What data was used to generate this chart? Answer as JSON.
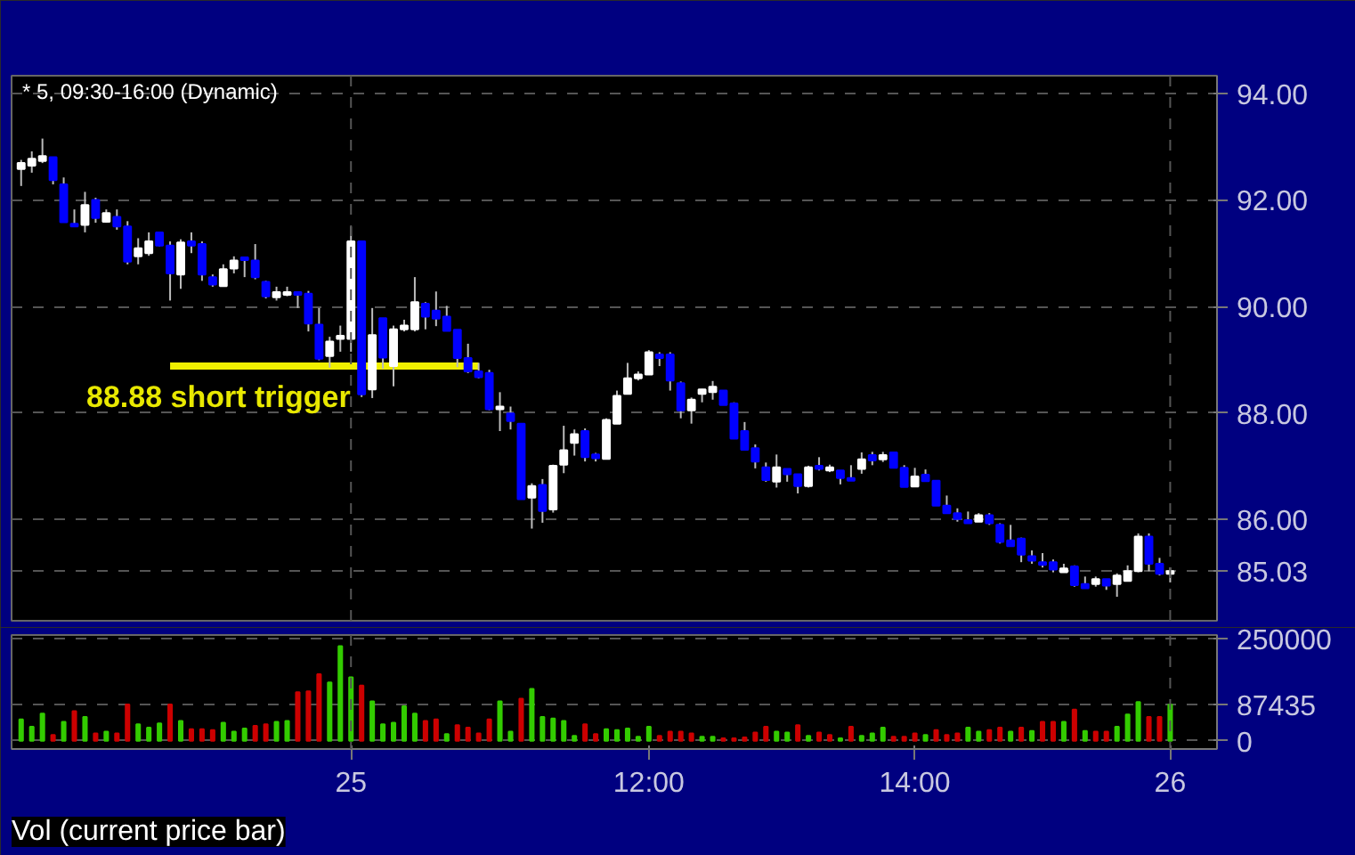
{
  "chart_data": [
    {
      "type": "candlestick",
      "title": "* 5, 09:30-16:00 (Dynamic)",
      "categories": [
        null,
        null,
        null,
        null,
        null,
        null,
        null,
        null,
        null,
        null,
        null,
        null,
        null,
        null,
        null,
        null,
        null,
        null,
        null,
        null,
        null,
        null,
        null,
        null,
        null,
        null,
        null,
        null,
        null,
        null,
        null,
        null,
        null,
        null,
        null,
        null,
        null,
        null,
        null,
        null,
        null,
        null,
        null,
        null,
        null,
        null,
        null,
        null,
        null,
        null,
        null,
        null,
        null,
        null,
        null,
        null,
        null,
        null,
        null,
        null,
        null,
        null,
        null,
        null,
        null,
        null,
        null,
        null,
        null,
        null,
        null,
        null,
        null,
        null,
        null,
        null,
        null,
        null,
        null,
        null,
        null,
        null,
        null,
        null,
        null,
        null,
        null,
        null,
        null,
        null,
        null,
        null,
        null,
        null,
        null,
        null,
        null,
        null,
        null,
        null,
        null,
        null,
        null,
        null,
        null,
        null,
        null,
        null,
        null
      ],
      "ohlc": [
        [
          92.58,
          92.75,
          92.26,
          92.69
        ],
        [
          92.64,
          92.91,
          92.51,
          92.77
        ],
        [
          92.73,
          93.15,
          92.69,
          92.82
        ],
        [
          92.8,
          92.8,
          92.29,
          92.37
        ],
        [
          92.29,
          92.42,
          91.58,
          91.58
        ],
        [
          91.55,
          91.82,
          91.5,
          91.5
        ],
        [
          91.53,
          92.15,
          91.39,
          91.9
        ],
        [
          92.0,
          92.04,
          91.57,
          91.66
        ],
        [
          91.59,
          91.82,
          91.57,
          91.75
        ],
        [
          91.68,
          91.82,
          91.44,
          91.5
        ],
        [
          91.5,
          91.6,
          90.79,
          90.84
        ],
        [
          90.94,
          91.28,
          90.79,
          91.09
        ],
        [
          91.0,
          91.39,
          90.95,
          91.22
        ],
        [
          91.39,
          91.39,
          91.13,
          91.14
        ],
        [
          91.14,
          91.22,
          90.11,
          90.62
        ],
        [
          90.6,
          91.26,
          90.33,
          91.2
        ],
        [
          91.22,
          91.39,
          91.0,
          91.14
        ],
        [
          91.17,
          91.22,
          90.48,
          90.6
        ],
        [
          90.55,
          90.6,
          90.37,
          90.41
        ],
        [
          90.38,
          90.79,
          90.37,
          90.7
        ],
        [
          90.71,
          90.94,
          90.62,
          90.86
        ],
        [
          90.92,
          90.92,
          90.55,
          90.87
        ],
        [
          90.86,
          91.17,
          90.51,
          90.55
        ],
        [
          90.46,
          90.48,
          90.15,
          90.19
        ],
        [
          90.17,
          90.37,
          90.11,
          90.27
        ],
        [
          90.22,
          90.37,
          90.19,
          90.27
        ],
        [
          90.27,
          90.27,
          89.97,
          90.22
        ],
        [
          90.24,
          90.29,
          89.53,
          89.68
        ],
        [
          89.66,
          89.97,
          88.99,
          89.02
        ],
        [
          89.07,
          89.43,
          88.85,
          89.34
        ],
        [
          89.39,
          89.64,
          89.15,
          89.45
        ],
        [
          89.39,
          91.5,
          89.15,
          91.22
        ],
        [
          91.22,
          91.22,
          88.3,
          88.35
        ],
        [
          88.44,
          89.97,
          88.28,
          89.46
        ],
        [
          89.78,
          89.78,
          88.83,
          89.04
        ],
        [
          88.88,
          89.64,
          88.5,
          89.57
        ],
        [
          89.57,
          89.75,
          89.53,
          89.64
        ],
        [
          89.57,
          90.55,
          89.53,
          90.08
        ],
        [
          90.05,
          90.08,
          89.57,
          89.81
        ],
        [
          89.92,
          90.28,
          89.63,
          89.77
        ],
        [
          89.81,
          90.01,
          89.54,
          89.54
        ],
        [
          89.56,
          89.56,
          88.86,
          89.03
        ],
        [
          89.03,
          89.3,
          88.75,
          88.78
        ],
        [
          88.78,
          88.94,
          88.65,
          88.67
        ],
        [
          88.75,
          88.81,
          88.05,
          88.07
        ],
        [
          88.07,
          88.39,
          87.66,
          88.12
        ],
        [
          87.99,
          88.12,
          87.69,
          87.85
        ],
        [
          87.8,
          87.8,
          86.38,
          86.38
        ],
        [
          86.41,
          86.68,
          85.83,
          86.63
        ],
        [
          86.65,
          86.76,
          85.94,
          86.16
        ],
        [
          86.19,
          87.03,
          86.13,
          87.01
        ],
        [
          87.03,
          87.76,
          86.87,
          87.3
        ],
        [
          87.44,
          87.69,
          87.2,
          87.6
        ],
        [
          87.66,
          87.71,
          87.09,
          87.17
        ],
        [
          87.22,
          87.25,
          87.09,
          87.15
        ],
        [
          87.14,
          87.9,
          87.14,
          87.87
        ],
        [
          87.8,
          88.42,
          87.8,
          88.32
        ],
        [
          88.36,
          88.94,
          88.36,
          88.65
        ],
        [
          88.65,
          88.78,
          88.61,
          88.72
        ],
        [
          88.72,
          89.18,
          88.72,
          89.14
        ],
        [
          89.1,
          89.14,
          88.88,
          89.03
        ],
        [
          89.1,
          89.14,
          88.42,
          88.61
        ],
        [
          88.56,
          88.59,
          87.9,
          88.05
        ],
        [
          88.05,
          88.29,
          87.8,
          88.25
        ],
        [
          88.36,
          88.45,
          88.2,
          88.44
        ],
        [
          88.39,
          88.6,
          88.25,
          88.49
        ],
        [
          88.42,
          88.42,
          88.15,
          88.15
        ],
        [
          88.18,
          88.2,
          87.52,
          87.52
        ],
        [
          87.66,
          87.83,
          87.31,
          87.31
        ],
        [
          87.34,
          87.41,
          86.96,
          87.09
        ],
        [
          86.98,
          87.07,
          86.71,
          86.74
        ],
        [
          86.71,
          87.22,
          86.6,
          86.98
        ],
        [
          86.95,
          86.95,
          86.71,
          86.85
        ],
        [
          86.85,
          86.85,
          86.49,
          86.63
        ],
        [
          86.63,
          87.01,
          86.6,
          86.98
        ],
        [
          87.01,
          87.17,
          86.92,
          86.95
        ],
        [
          86.92,
          87.03,
          86.89,
          86.98
        ],
        [
          86.92,
          86.92,
          86.66,
          86.78
        ],
        [
          86.78,
          87.02,
          86.73,
          86.73
        ],
        [
          86.95,
          87.26,
          86.86,
          87.13
        ],
        [
          87.21,
          87.27,
          87.02,
          87.11
        ],
        [
          87.13,
          87.27,
          87.08,
          87.21
        ],
        [
          87.26,
          87.26,
          86.97,
          86.97
        ],
        [
          86.97,
          87.02,
          86.61,
          86.61
        ],
        [
          86.62,
          86.97,
          86.62,
          86.81
        ],
        [
          86.84,
          86.94,
          86.72,
          86.72
        ],
        [
          86.73,
          86.73,
          86.26,
          86.26
        ],
        [
          86.26,
          86.45,
          86.12,
          86.12
        ],
        [
          86.12,
          86.21,
          85.96,
          86.01
        ],
        [
          85.99,
          86.15,
          85.93,
          85.93
        ],
        [
          85.96,
          86.12,
          85.96,
          86.08
        ],
        [
          86.08,
          86.12,
          85.9,
          85.93
        ],
        [
          85.9,
          85.93,
          85.55,
          85.58
        ],
        [
          85.61,
          85.9,
          85.5,
          85.5
        ],
        [
          85.64,
          85.66,
          85.2,
          85.34
        ],
        [
          85.31,
          85.42,
          85.17,
          85.23
        ],
        [
          85.2,
          85.37,
          85.1,
          85.15
        ],
        [
          85.2,
          85.25,
          85.01,
          85.06
        ],
        [
          85.01,
          85.17,
          85.01,
          85.08
        ],
        [
          85.12,
          85.14,
          84.74,
          84.77
        ],
        [
          84.79,
          84.93,
          84.71,
          84.71
        ],
        [
          84.79,
          84.93,
          84.74,
          84.88
        ],
        [
          84.88,
          84.88,
          84.68,
          84.76
        ],
        [
          84.79,
          84.99,
          84.55,
          84.95
        ],
        [
          84.85,
          85.14,
          84.85,
          85.03
        ],
        [
          85.03,
          85.74,
          85.01,
          85.68
        ],
        [
          85.68,
          85.74,
          85.03,
          85.17
        ],
        [
          85.17,
          85.28,
          84.95,
          84.98
        ],
        [
          84.98,
          85.1,
          84.82,
          85.03
        ]
      ],
      "colors": [
        "#ffffff",
        "#ffffff",
        "#ffffff",
        "#0000ff",
        "#0000ff",
        "#0000ff",
        "#ffffff",
        "#0000ff",
        "#ffffff",
        "#0000ff",
        "#0000ff",
        "#ffffff",
        "#ffffff",
        "#0000ff",
        "#0000ff",
        "#ffffff",
        "#0000ff",
        "#0000ff",
        "#0000ff",
        "#ffffff",
        "#ffffff",
        "#0000ff",
        "#0000ff",
        "#0000ff",
        "#ffffff",
        "#ffffff",
        "#0000ff",
        "#0000ff",
        "#0000ff",
        "#ffffff",
        "#ffffff",
        "#ffffff",
        "#0000ff",
        "#ffffff",
        "#0000ff",
        "#ffffff",
        "#ffffff",
        "#ffffff",
        "#0000ff",
        "#0000ff",
        "#0000ff",
        "#0000ff",
        "#0000ff",
        "#0000ff",
        "#0000ff",
        "#ffffff",
        "#0000ff",
        "#0000ff",
        "#ffffff",
        "#0000ff",
        "#ffffff",
        "#ffffff",
        "#ffffff",
        "#0000ff",
        "#0000ff",
        "#ffffff",
        "#ffffff",
        "#ffffff",
        "#ffffff",
        "#ffffff",
        "#0000ff",
        "#0000ff",
        "#0000ff",
        "#ffffff",
        "#ffffff",
        "#ffffff",
        "#0000ff",
        "#0000ff",
        "#0000ff",
        "#0000ff",
        "#0000ff",
        "#ffffff",
        "#0000ff",
        "#0000ff",
        "#ffffff",
        "#0000ff",
        "#ffffff",
        "#0000ff",
        "#0000ff",
        "#ffffff",
        "#0000ff",
        "#ffffff",
        "#0000ff",
        "#0000ff",
        "#ffffff",
        "#0000ff",
        "#0000ff",
        "#0000ff",
        "#0000ff",
        "#0000ff",
        "#ffffff",
        "#0000ff",
        "#0000ff",
        "#0000ff",
        "#0000ff",
        "#0000ff",
        "#0000ff",
        "#0000ff",
        "#ffffff",
        "#0000ff",
        "#0000ff",
        "#ffffff",
        "#0000ff",
        "#ffffff",
        "#ffffff",
        "#ffffff",
        "#0000ff",
        "#0000ff",
        "#ffffff"
      ],
      "series": [
        {
          "type": "line",
          "color": "#f0f000",
          "values": [
            null,
            null,
            null,
            null,
            null,
            null,
            null,
            null,
            null,
            null,
            null,
            null,
            null,
            null,
            88.88,
            88.88,
            88.88,
            88.88,
            88.88,
            88.88,
            88.88,
            88.88,
            88.88,
            88.88,
            88.88,
            88.88,
            88.88,
            88.88,
            88.88,
            88.88,
            88.88,
            88.88,
            88.88,
            88.88,
            88.88,
            88.88,
            88.88,
            88.88,
            88.88,
            88.88,
            88.88,
            88.88,
            88.88,
            88.88,
            null,
            null,
            null,
            null,
            null,
            null,
            null,
            null,
            null,
            null,
            null,
            null,
            null,
            null,
            null,
            null,
            null,
            null,
            null,
            null,
            null,
            null,
            null,
            null,
            null,
            null,
            null,
            null,
            null,
            null,
            null,
            null,
            null,
            null,
            null,
            null,
            null,
            null,
            null,
            null,
            null,
            null,
            null,
            null,
            null,
            null,
            null,
            null,
            null,
            null,
            null,
            null,
            null,
            null,
            null,
            null,
            null,
            null,
            null,
            null,
            null,
            null,
            null,
            null,
            null
          ]
        }
      ],
      "annotations": [
        "88.88 short trigger"
      ],
      "ylim": [
        84.1,
        94.33
      ],
      "yticks": [
        {
          "value": 85.03,
          "label": "85.03"
        },
        {
          "value": 86,
          "label": "86.00"
        },
        {
          "value": 88,
          "label": "88.00"
        },
        {
          "value": 90,
          "label": "90.00"
        },
        {
          "value": 92,
          "label": "92.00"
        },
        {
          "value": 94,
          "label": "94.00"
        }
      ],
      "grid": "y",
      "tick_labels": "y"
    },
    {
      "type": "bar",
      "title": "Vol (current price bar)",
      "categories": [
        null,
        null,
        null,
        null,
        null,
        null,
        null,
        null,
        null,
        null,
        null,
        null,
        null,
        null,
        null,
        null,
        null,
        null,
        null,
        null,
        null,
        null,
        null,
        null,
        null,
        null,
        null,
        null,
        null,
        null,
        null,
        "25",
        null,
        null,
        null,
        null,
        null,
        null,
        null,
        null,
        null,
        null,
        null,
        null,
        null,
        null,
        null,
        null,
        null,
        null,
        null,
        null,
        null,
        null,
        null,
        null,
        null,
        null,
        null,
        "12:00",
        null,
        null,
        null,
        null,
        null,
        null,
        null,
        null,
        null,
        null,
        null,
        null,
        null,
        null,
        null,
        null,
        null,
        null,
        null,
        null,
        null,
        null,
        null,
        null,
        "14:00",
        null,
        null,
        null,
        null,
        null,
        null,
        null,
        null,
        null,
        null,
        null,
        null,
        null,
        null,
        null,
        null,
        null,
        null,
        null,
        null,
        null,
        null,
        null,
        "26"
      ],
      "values": [
        52000,
        34000,
        66000,
        14000,
        46000,
        72000,
        58000,
        18000,
        22000,
        18000,
        88000,
        40000,
        32000,
        42000,
        88000,
        48000,
        28000,
        28000,
        26000,
        44000,
        22000,
        30000,
        36000,
        40000,
        46000,
        48000,
        118000,
        120000,
        162000,
        142000,
        230000,
        154000,
        134000,
        96000,
        40000,
        44000,
        84000,
        66000,
        48000,
        52000,
        16000,
        38000,
        32000,
        18000,
        52000,
        96000,
        22000,
        102000,
        126000,
        58000,
        54000,
        48000,
        12000,
        40000,
        16000,
        28000,
        26000,
        30000,
        10000,
        34000,
        12000,
        22000,
        22000,
        18000,
        10000,
        10000,
        6000,
        6000,
        8000,
        20000,
        34000,
        22000,
        20000,
        38000,
        12000,
        20000,
        14000,
        6000,
        34000,
        12000,
        18000,
        32000,
        10000,
        10000,
        18000,
        14000,
        26000,
        14000,
        18000,
        32000,
        22000,
        26000,
        32000,
        22000,
        32000,
        24000,
        46000,
        46000,
        46000,
        76000,
        24000,
        22000,
        22000,
        34000,
        64000,
        94000,
        58000,
        58000,
        87435
      ],
      "colors": [
        "#33cc00",
        "#33cc00",
        "#33cc00",
        "#cc0000",
        "#33cc00",
        "#cc0000",
        "#33cc00",
        "#cc0000",
        "#33cc00",
        "#cc0000",
        "#cc0000",
        "#33cc00",
        "#33cc00",
        "#33cc00",
        "#cc0000",
        "#33cc00",
        "#cc0000",
        "#cc0000",
        "#cc0000",
        "#33cc00",
        "#33cc00",
        "#33cc00",
        "#cc0000",
        "#cc0000",
        "#33cc00",
        "#33cc00",
        "#cc0000",
        "#cc0000",
        "#cc0000",
        "#33cc00",
        "#33cc00",
        "#33cc00",
        "#cc0000",
        "#33cc00",
        "#33cc00",
        "#33cc00",
        "#33cc00",
        "#33cc00",
        "#cc0000",
        "#cc0000",
        "#33cc00",
        "#cc0000",
        "#cc0000",
        "#cc0000",
        "#cc0000",
        "#33cc00",
        "#33cc00",
        "#cc0000",
        "#33cc00",
        "#33cc00",
        "#33cc00",
        "#33cc00",
        "#33cc00",
        "#cc0000",
        "#cc0000",
        "#33cc00",
        "#33cc00",
        "#33cc00",
        "#33cc00",
        "#33cc00",
        "#cc0000",
        "#cc0000",
        "#cc0000",
        "#cc0000",
        "#33cc00",
        "#33cc00",
        "#cc0000",
        "#cc0000",
        "#cc0000",
        "#cc0000",
        "#cc0000",
        "#33cc00",
        "#33cc00",
        "#cc0000",
        "#33cc00",
        "#cc0000",
        "#cc0000",
        "#33cc00",
        "#cc0000",
        "#33cc00",
        "#33cc00",
        "#33cc00",
        "#cc0000",
        "#cc0000",
        "#cc0000",
        "#33cc00",
        "#cc0000",
        "#cc0000",
        "#cc0000",
        "#33cc00",
        "#33cc00",
        "#cc0000",
        "#cc0000",
        "#33cc00",
        "#cc0000",
        "#33cc00",
        "#cc0000",
        "#cc0000",
        "#33cc00",
        "#cc0000",
        "#33cc00",
        "#cc0000",
        "#cc0000",
        "#33cc00",
        "#33cc00",
        "#33cc00",
        "#cc0000",
        "#cc0000",
        "#33cc00"
      ],
      "ref_lines": [
        {
          "axis": "x",
          "value": "25",
          "line_style": "dashed",
          "color": "#555555"
        },
        {
          "axis": "x",
          "value": "26",
          "line_style": "dashed",
          "color": "#555555"
        }
      ],
      "ylim": [
        -20000,
        257000
      ],
      "yticks": [
        0,
        87435,
        250000
      ],
      "grid": "y"
    }
  ]
}
